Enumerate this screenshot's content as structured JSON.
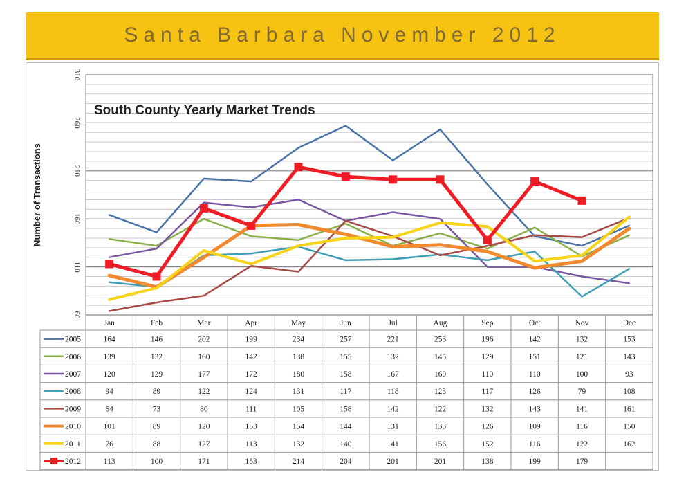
{
  "banner": {
    "title": "Santa Barbara November 2012"
  },
  "chart_data": {
    "type": "line",
    "title": "South County Yearly Market Trends",
    "ylabel": "Number of Transactions",
    "ylim": [
      60,
      310
    ],
    "yticks": [
      60,
      110,
      160,
      210,
      260,
      310
    ],
    "grid": true,
    "legend": "table-below",
    "categories": [
      "Jan",
      "Feb",
      "Mar",
      "Apr",
      "May",
      "Jun",
      "Jul",
      "Aug",
      "Sep",
      "Oct",
      "Nov",
      "Dec"
    ],
    "series": [
      {
        "name": "2005",
        "color": "#4a74a8",
        "width": 2.5,
        "values": [
          164,
          146,
          202,
          199,
          234,
          257,
          221,
          253,
          196,
          142,
          132,
          153
        ]
      },
      {
        "name": "2006",
        "color": "#8ab04a",
        "width": 2.5,
        "values": [
          139,
          132,
          160,
          142,
          138,
          155,
          132,
          145,
          129,
          151,
          121,
          143
        ]
      },
      {
        "name": "2007",
        "color": "#7957a0",
        "width": 2.5,
        "values": [
          120,
          129,
          177,
          172,
          180,
          158,
          167,
          160,
          110,
          110,
          100,
          93
        ]
      },
      {
        "name": "2008",
        "color": "#3f9fb7",
        "width": 2.5,
        "values": [
          94,
          89,
          122,
          124,
          131,
          117,
          118,
          123,
          117,
          126,
          79,
          108
        ]
      },
      {
        "name": "2009",
        "color": "#a54a45",
        "width": 2.5,
        "values": [
          64,
          73,
          80,
          111,
          105,
          158,
          142,
          122,
          132,
          143,
          141,
          161
        ]
      },
      {
        "name": "2010",
        "color": "#f08a30",
        "width": 5,
        "values": [
          101,
          89,
          120,
          153,
          154,
          144,
          131,
          133,
          126,
          109,
          116,
          150
        ]
      },
      {
        "name": "2011",
        "color": "#f7d31a",
        "width": 4,
        "values": [
          76,
          88,
          127,
          113,
          132,
          140,
          141,
          156,
          152,
          116,
          122,
          162
        ]
      },
      {
        "name": "2012",
        "color": "#ee1c24",
        "width": 5,
        "marker": "square",
        "values": [
          113,
          100,
          171,
          153,
          214,
          204,
          201,
          201,
          138,
          199,
          179,
          null
        ]
      }
    ]
  }
}
